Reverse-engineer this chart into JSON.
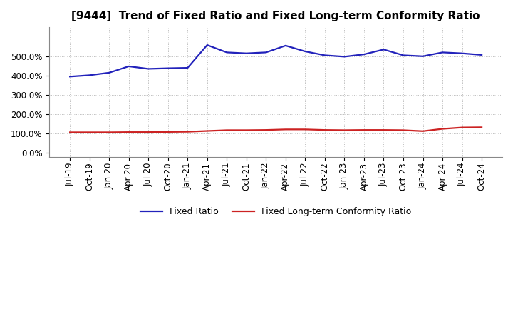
{
  "title": "[9444]  Trend of Fixed Ratio and Fixed Long-term Conformity Ratio",
  "x_labels": [
    "Jul-19",
    "Oct-19",
    "Jan-20",
    "Apr-20",
    "Jul-20",
    "Oct-20",
    "Jan-21",
    "Apr-21",
    "Jul-21",
    "Oct-21",
    "Jan-22",
    "Apr-22",
    "Jul-22",
    "Oct-22",
    "Jan-23",
    "Apr-23",
    "Jul-23",
    "Oct-23",
    "Jan-24",
    "Apr-24",
    "Jul-24",
    "Oct-24"
  ],
  "fixed_ratio": [
    395,
    402,
    415,
    448,
    435,
    438,
    440,
    558,
    520,
    515,
    520,
    555,
    525,
    505,
    498,
    510,
    535,
    505,
    500,
    520,
    515,
    507
  ],
  "fixed_lt_ratio": [
    107,
    107,
    107,
    108,
    108,
    109,
    110,
    114,
    118,
    118,
    119,
    122,
    122,
    119,
    118,
    119,
    119,
    118,
    113,
    125,
    132,
    133
  ],
  "ylim_min": -20,
  "ylim_max": 650,
  "yticks": [
    0,
    100,
    200,
    300,
    400,
    500
  ],
  "line_color_blue": "#2222bb",
  "line_color_red": "#cc2222",
  "bg_color": "#ffffff",
  "grid_color": "#aaaaaa",
  "legend_fixed_ratio": "Fixed Ratio",
  "legend_fixed_lt_ratio": "Fixed Long-term Conformity Ratio",
  "title_fontsize": 11,
  "tick_fontsize": 8.5,
  "legend_fontsize": 9,
  "linewidth": 1.6
}
